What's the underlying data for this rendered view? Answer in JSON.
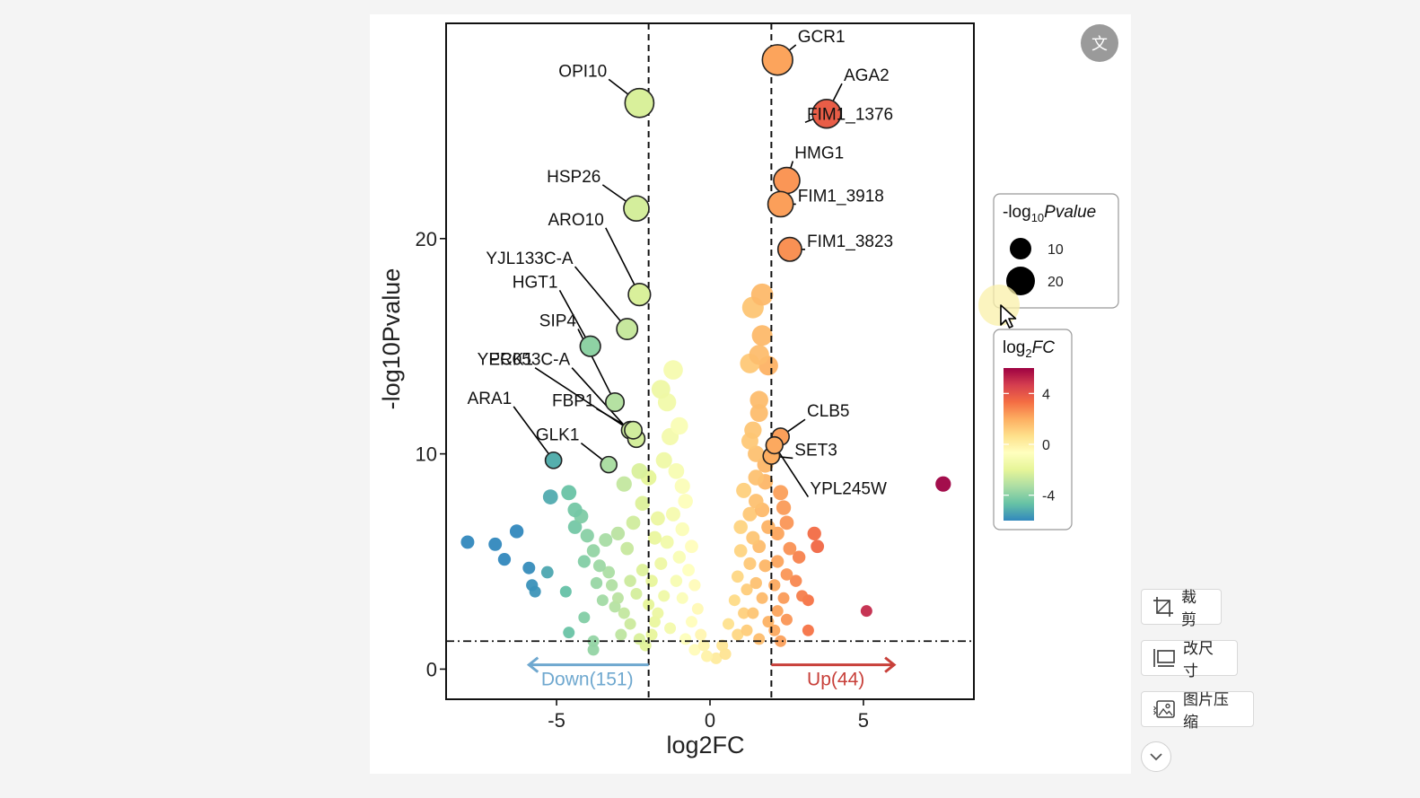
{
  "toolbar": {
    "crop_label": "裁剪",
    "resize_label": "改尺寸",
    "compress_label": "图片压缩",
    "translate_icon_label": "文"
  },
  "colors": {
    "down": "#6fa8cf",
    "up": "#c8403a",
    "dashed": "#000000"
  },
  "chart_data": {
    "type": "scatter",
    "subtype": "volcano",
    "title": "",
    "xlabel": "log2FC",
    "ylabel": "-log10Pvalue",
    "xlim": [
      -8.6,
      8.6
    ],
    "ylim": [
      -1.4,
      30.0
    ],
    "xticks": [
      -5,
      0,
      5
    ],
    "yticks": [
      0,
      10,
      20
    ],
    "fc_thresholds": [
      -2,
      2
    ],
    "pvalue_threshold": 1.3,
    "down_label": "Down(151)",
    "up_label": "Up(44)",
    "legend_size": {
      "title_prefix": "-log",
      "title_sub": "10",
      "title_suffix": "Pvalue",
      "values": [
        10,
        20
      ],
      "labels": [
        "10",
        "20"
      ]
    },
    "legend_color": {
      "title_prefix": "log",
      "title_sub": "2",
      "title_suffix": "FC",
      "ticks": [
        4,
        0,
        -4
      ],
      "labels": [
        "4",
        "0",
        "-4"
      ],
      "colors": [
        "#9e0142",
        "#d53e4f",
        "#f46d43",
        "#fdae61",
        "#fee08b",
        "#ffffbf",
        "#e6f598",
        "#abdda4",
        "#66c2a5",
        "#3288bd"
      ]
    },
    "labeled_points": [
      {
        "gene": "GCR1",
        "x": 2.2,
        "y": 28.3,
        "lx": 2.8,
        "ly": 29.0
      },
      {
        "gene": "AGA2",
        "x": 3.8,
        "y": 25.8,
        "lx": 4.3,
        "ly": 27.2
      },
      {
        "gene": "FIM1_1376",
        "x": 3.8,
        "y": 25.8,
        "lx": 3.1,
        "ly": 25.4
      },
      {
        "gene": "HMG1",
        "x": 2.5,
        "y": 22.7,
        "lx": 2.7,
        "ly": 23.6
      },
      {
        "gene": "FIM1_3918",
        "x": 2.3,
        "y": 21.6,
        "lx": 2.8,
        "ly": 21.6
      },
      {
        "gene": "FIM1_3823",
        "x": 2.6,
        "y": 19.5,
        "lx": 3.1,
        "ly": 19.5
      },
      {
        "gene": "OPI10",
        "x": -2.3,
        "y": 26.3,
        "lx": -3.3,
        "ly": 27.4
      },
      {
        "gene": "HSP26",
        "x": -2.4,
        "y": 21.4,
        "lx": -3.5,
        "ly": 22.5
      },
      {
        "gene": "ARO10",
        "x": -2.3,
        "y": 17.4,
        "lx": -3.4,
        "ly": 20.5
      },
      {
        "gene": "YJL133C-A",
        "x": -2.7,
        "y": 15.8,
        "lx": -4.4,
        "ly": 18.7
      },
      {
        "gene": "HGT1",
        "x": -3.9,
        "y": 15.0,
        "lx": -4.9,
        "ly": 17.6
      },
      {
        "gene": "SIP4",
        "x": -3.1,
        "y": 12.4,
        "lx": -4.3,
        "ly": 15.8
      },
      {
        "gene": "PCK1",
        "x": -2.6,
        "y": 11.1,
        "lx": -5.7,
        "ly": 14.0
      },
      {
        "gene": "YER053C-A",
        "x": -2.4,
        "y": 10.7,
        "lx": -4.5,
        "ly": 14.0
      },
      {
        "gene": "FBP1",
        "x": -2.5,
        "y": 11.1,
        "lx": -3.7,
        "ly": 12.1
      },
      {
        "gene": "ARA1",
        "x": -5.1,
        "y": 9.7,
        "lx": -6.4,
        "ly": 12.2
      },
      {
        "gene": "GLK1",
        "x": -3.3,
        "y": 9.5,
        "lx": -4.2,
        "ly": 10.5
      },
      {
        "gene": "CLB5",
        "x": 2.3,
        "y": 10.8,
        "lx": 3.1,
        "ly": 11.6
      },
      {
        "gene": "SET3",
        "x": 2.0,
        "y": 9.9,
        "lx": 2.7,
        "ly": 9.8
      },
      {
        "gene": "YPL245W",
        "x": 2.1,
        "y": 10.4,
        "lx": 3.2,
        "ly": 8.0
      }
    ],
    "scatter_points": [
      [
        -7.9,
        5.9
      ],
      [
        -7.0,
        5.8
      ],
      [
        -6.3,
        6.4
      ],
      [
        -6.7,
        5.1
      ],
      [
        -5.9,
        4.7
      ],
      [
        -5.3,
        4.5
      ],
      [
        -5.8,
        3.9
      ],
      [
        -5.7,
        3.6
      ],
      [
        -4.7,
        3.6
      ],
      [
        -4.6,
        1.7
      ],
      [
        -4.1,
        2.4
      ],
      [
        -3.8,
        1.3
      ],
      [
        -3.8,
        0.9
      ],
      [
        -5.2,
        8.0
      ],
      [
        -4.6,
        8.2
      ],
      [
        -4.4,
        7.4
      ],
      [
        -4.2,
        7.1
      ],
      [
        -4.4,
        6.6
      ],
      [
        -4.0,
        6.2
      ],
      [
        -3.8,
        5.5
      ],
      [
        -4.1,
        5.0
      ],
      [
        -3.6,
        4.8
      ],
      [
        -3.3,
        4.5
      ],
      [
        -3.7,
        4.0
      ],
      [
        -3.2,
        3.9
      ],
      [
        -3.5,
        3.2
      ],
      [
        -3.1,
        2.9
      ],
      [
        -2.8,
        2.6
      ],
      [
        -2.6,
        2.1
      ],
      [
        -2.9,
        1.6
      ],
      [
        -2.3,
        1.4
      ],
      [
        -2.1,
        1.1
      ],
      [
        -3.4,
        6.0
      ],
      [
        -3.0,
        6.3
      ],
      [
        -2.7,
        5.6
      ],
      [
        -2.5,
        6.8
      ],
      [
        -2.2,
        7.7
      ],
      [
        -2.8,
        8.6
      ],
      [
        -2.3,
        9.2
      ],
      [
        -2.0,
        8.9
      ],
      [
        -1.5,
        9.7
      ],
      [
        -1.3,
        10.8
      ],
      [
        -1.6,
        13.0
      ],
      [
        -1.2,
        13.9
      ],
      [
        -1.4,
        12.4
      ],
      [
        -1.0,
        11.3
      ],
      [
        -1.1,
        9.2
      ],
      [
        -0.9,
        8.5
      ],
      [
        -0.8,
        7.8
      ],
      [
        -1.2,
        7.2
      ],
      [
        -0.9,
        6.5
      ],
      [
        -0.6,
        5.7
      ],
      [
        -1.0,
        5.2
      ],
      [
        -0.7,
        4.6
      ],
      [
        -0.5,
        3.9
      ],
      [
        -0.9,
        3.3
      ],
      [
        -0.4,
        2.8
      ],
      [
        -0.6,
        2.2
      ],
      [
        -0.3,
        1.6
      ],
      [
        -0.2,
        1.1
      ],
      [
        -0.1,
        0.6
      ],
      [
        -1.7,
        7.0
      ],
      [
        -1.8,
        6.1
      ],
      [
        -1.6,
        4.9
      ],
      [
        -1.9,
        4.1
      ],
      [
        -1.5,
        3.4
      ],
      [
        -1.7,
        2.6
      ],
      [
        -1.3,
        1.9
      ],
      [
        -1.9,
        1.6
      ],
      [
        -2.2,
        4.6
      ],
      [
        -2.4,
        3.5
      ],
      [
        -2.0,
        3.0
      ],
      [
        -1.8,
        2.2
      ],
      [
        -1.4,
        5.9
      ],
      [
        -1.1,
        4.1
      ],
      [
        -0.8,
        1.4
      ],
      [
        -0.5,
        0.9
      ],
      [
        -2.6,
        4.1
      ],
      [
        -3.0,
        3.3
      ],
      [
        1.7,
        17.4
      ],
      [
        1.4,
        16.8
      ],
      [
        1.7,
        15.5
      ],
      [
        1.6,
        14.6
      ],
      [
        1.3,
        14.2
      ],
      [
        1.9,
        14.1
      ],
      [
        1.6,
        12.5
      ],
      [
        1.6,
        11.9
      ],
      [
        1.4,
        11.1
      ],
      [
        1.3,
        10.6
      ],
      [
        1.5,
        10.0
      ],
      [
        1.8,
        9.5
      ],
      [
        1.5,
        8.9
      ],
      [
        1.1,
        8.3
      ],
      [
        1.5,
        7.8
      ],
      [
        1.3,
        7.2
      ],
      [
        1.0,
        6.6
      ],
      [
        1.4,
        6.1
      ],
      [
        1.0,
        5.5
      ],
      [
        1.3,
        4.9
      ],
      [
        0.9,
        4.3
      ],
      [
        1.2,
        3.7
      ],
      [
        0.8,
        3.2
      ],
      [
        1.1,
        2.6
      ],
      [
        0.6,
        2.1
      ],
      [
        0.9,
        1.6
      ],
      [
        0.4,
        1.1
      ],
      [
        0.2,
        0.5
      ],
      [
        0.5,
        0.7
      ],
      [
        1.8,
        8.7
      ],
      [
        1.7,
        7.4
      ],
      [
        1.9,
        6.6
      ],
      [
        1.6,
        5.7
      ],
      [
        1.8,
        4.8
      ],
      [
        1.5,
        4.0
      ],
      [
        1.7,
        3.3
      ],
      [
        1.4,
        2.6
      ],
      [
        1.9,
        2.2
      ],
      [
        1.2,
        1.8
      ],
      [
        1.6,
        1.4
      ],
      [
        2.3,
        8.2
      ],
      [
        2.4,
        7.5
      ],
      [
        2.5,
        6.8
      ],
      [
        2.2,
        6.3
      ],
      [
        2.6,
        5.6
      ],
      [
        2.2,
        5.0
      ],
      [
        2.5,
        4.4
      ],
      [
        2.1,
        3.9
      ],
      [
        2.4,
        3.3
      ],
      [
        2.2,
        2.7
      ],
      [
        2.5,
        2.3
      ],
      [
        2.1,
        1.8
      ],
      [
        2.3,
        1.3
      ],
      [
        2.9,
        5.2
      ],
      [
        3.4,
        6.3
      ],
      [
        3.5,
        5.7
      ],
      [
        3.0,
        3.4
      ],
      [
        3.2,
        3.2
      ],
      [
        3.2,
        1.8
      ],
      [
        5.1,
        2.7
      ],
      [
        7.6,
        8.6
      ],
      [
        2.8,
        4.1
      ]
    ]
  }
}
